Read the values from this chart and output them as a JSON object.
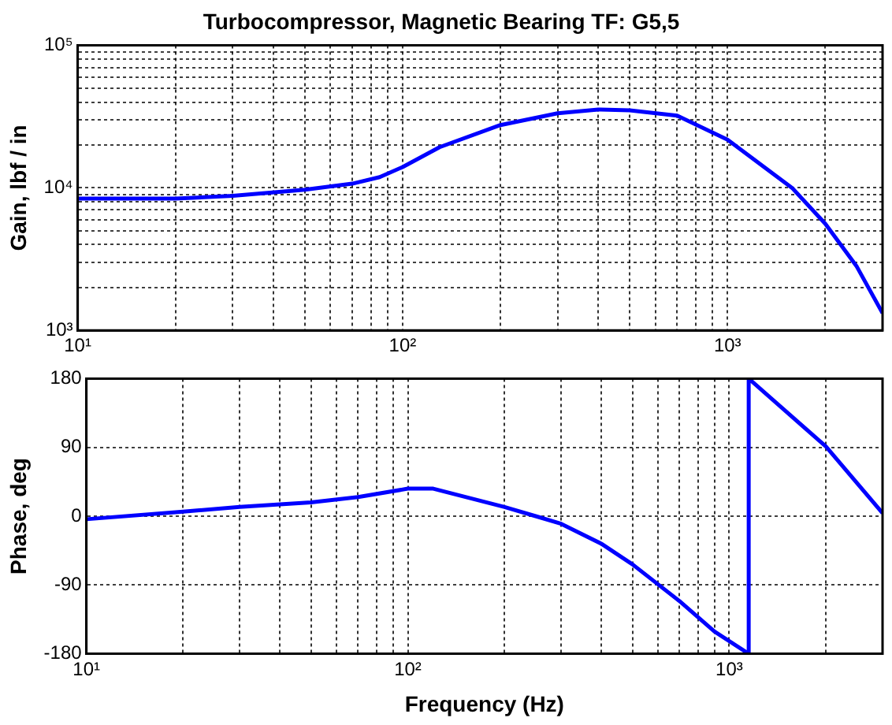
{
  "chart_data": [
    {
      "type": "line",
      "title": "Turbocompressor, Magnetic Bearing TF: G5,5",
      "ylabel": "Gain, lbf / in",
      "log": "xy",
      "grid": true,
      "x": [
        10,
        20,
        30,
        50,
        70,
        85,
        100,
        130,
        200,
        300,
        400,
        500,
        700,
        1000,
        1580,
        2000,
        2500,
        3000
      ],
      "series": [
        {
          "color": "#0000ff",
          "values": [
            8400,
            8400,
            8800,
            9700,
            10700,
            11900,
            14000,
            19300,
            27600,
            33400,
            35500,
            35000,
            32100,
            21800,
            10000,
            5600,
            2800,
            1320
          ]
        }
      ],
      "xlim": [
        10,
        3000
      ],
      "xticks": [
        {
          "value": 10,
          "label": "10¹"
        },
        {
          "value": 20,
          "label": null
        },
        {
          "value": 30,
          "label": null
        },
        {
          "value": 40,
          "label": null
        },
        {
          "value": 50,
          "label": null
        },
        {
          "value": 60,
          "label": null
        },
        {
          "value": 70,
          "label": null
        },
        {
          "value": 80,
          "label": null
        },
        {
          "value": 90,
          "label": null
        },
        {
          "value": 100,
          "label": "10²"
        },
        {
          "value": 200,
          "label": null
        },
        {
          "value": 300,
          "label": null
        },
        {
          "value": 400,
          "label": null
        },
        {
          "value": 500,
          "label": null
        },
        {
          "value": 600,
          "label": null
        },
        {
          "value": 700,
          "label": null
        },
        {
          "value": 800,
          "label": null
        },
        {
          "value": 900,
          "label": null
        },
        {
          "value": 1000,
          "label": "10³"
        },
        {
          "value": 2000,
          "label": null
        },
        {
          "value": 3000,
          "label": null
        }
      ],
      "ylim": [
        1000,
        100000
      ],
      "yticks": [
        {
          "value": 1000,
          "label": "10³"
        },
        {
          "value": 2000,
          "label": null
        },
        {
          "value": 3000,
          "label": null
        },
        {
          "value": 4000,
          "label": null
        },
        {
          "value": 5000,
          "label": null
        },
        {
          "value": 6000,
          "label": null
        },
        {
          "value": 7000,
          "label": null
        },
        {
          "value": 8000,
          "label": null
        },
        {
          "value": 9000,
          "label": null
        },
        {
          "value": 10000,
          "label": "10⁴"
        },
        {
          "value": 20000,
          "label": null
        },
        {
          "value": 30000,
          "label": null
        },
        {
          "value": 40000,
          "label": null
        },
        {
          "value": 50000,
          "label": null
        },
        {
          "value": 60000,
          "label": null
        },
        {
          "value": 70000,
          "label": null
        },
        {
          "value": 80000,
          "label": null
        },
        {
          "value": 90000,
          "label": null
        },
        {
          "value": 100000,
          "label": "10⁵"
        }
      ]
    },
    {
      "type": "line",
      "xlabel": "Frequency (Hz)",
      "ylabel": "Phase, deg",
      "log": "x",
      "grid": true,
      "x": [
        10,
        20,
        30,
        50,
        70,
        100,
        120,
        200,
        250,
        300,
        400,
        500,
        700,
        900,
        1150,
        1150,
        2000,
        3000
      ],
      "series": [
        {
          "color": "#0000ff",
          "values": [
            -4,
            6,
            12,
            18,
            25,
            36,
            36,
            12,
            0,
            -10,
            -36,
            -63,
            -111,
            -151,
            -180,
            180,
            91,
            4
          ]
        }
      ],
      "xlim": [
        10,
        3000
      ],
      "xticks": [
        {
          "value": 10,
          "label": "10¹"
        },
        {
          "value": 20,
          "label": null
        },
        {
          "value": 30,
          "label": null
        },
        {
          "value": 40,
          "label": null
        },
        {
          "value": 50,
          "label": null
        },
        {
          "value": 60,
          "label": null
        },
        {
          "value": 70,
          "label": null
        },
        {
          "value": 80,
          "label": null
        },
        {
          "value": 90,
          "label": null
        },
        {
          "value": 100,
          "label": "10²"
        },
        {
          "value": 200,
          "label": null
        },
        {
          "value": 300,
          "label": null
        },
        {
          "value": 400,
          "label": null
        },
        {
          "value": 500,
          "label": null
        },
        {
          "value": 600,
          "label": null
        },
        {
          "value": 700,
          "label": null
        },
        {
          "value": 800,
          "label": null
        },
        {
          "value": 900,
          "label": null
        },
        {
          "value": 1000,
          "label": "10³"
        },
        {
          "value": 2000,
          "label": null
        },
        {
          "value": 3000,
          "label": null
        }
      ],
      "ylim": [
        -180,
        180
      ],
      "yticks": [
        -180,
        -90,
        0,
        90,
        180
      ]
    }
  ]
}
